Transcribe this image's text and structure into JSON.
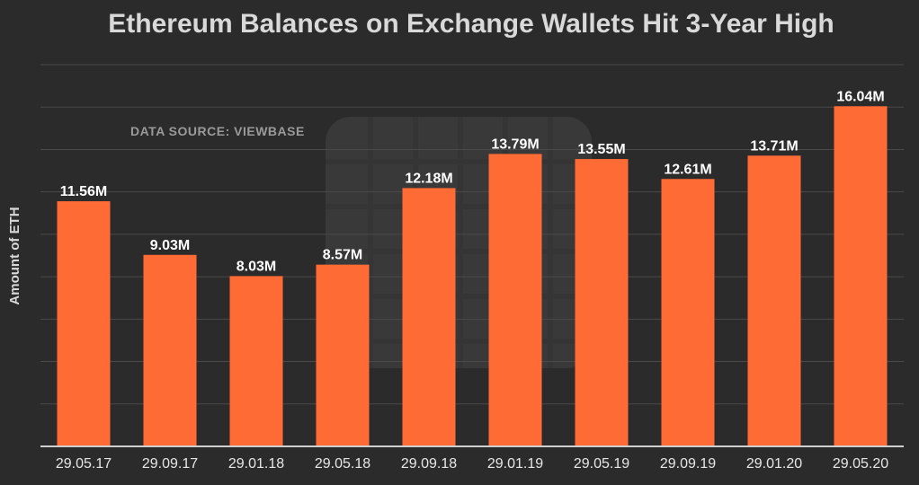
{
  "chart_data": {
    "type": "bar",
    "title": "Ethereum Balances on Exchange Wallets Hit 3-Year High",
    "source_note": "DATA SOURCE: VIEWBASE",
    "xlabel": "",
    "ylabel": "Amount of ETH",
    "categories": [
      "29.05.17",
      "29.09.17",
      "29.01.18",
      "29.05.18",
      "29.09.18",
      "29.01.19",
      "29.05.19",
      "29.09.19",
      "29.01.20",
      "29.05.20"
    ],
    "values": [
      11.56,
      9.03,
      8.03,
      8.57,
      12.18,
      13.79,
      13.55,
      12.61,
      13.71,
      16.04
    ],
    "data_labels": [
      "11.56M",
      "9.03M",
      "8.03M",
      "8.57M",
      "12.18M",
      "13.79M",
      "13.55M",
      "12.61M",
      "13.71M",
      "16.04M"
    ],
    "unit": "M",
    "ylim": [
      0,
      18
    ],
    "grid": true,
    "legend": "none",
    "colors": {
      "bar": "#ff6b35",
      "background": "#2b2b2b"
    }
  }
}
